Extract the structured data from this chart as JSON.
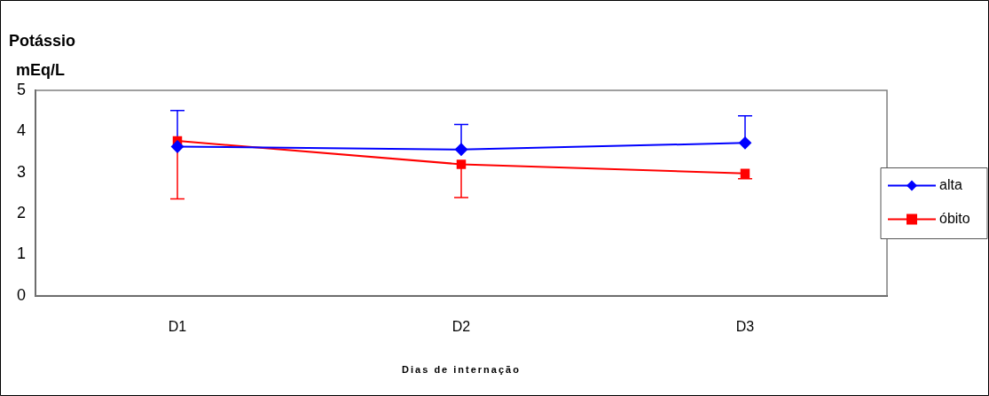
{
  "chart_data": {
    "type": "line",
    "title": "Potássio",
    "ylabel": "mEq/L",
    "xlabel": "Dias de internação",
    "categories": [
      "D1",
      "D2",
      "D3"
    ],
    "series": [
      {
        "name": "alta",
        "color": "#0000ff",
        "marker": "diamond",
        "values": [
          3.63,
          3.56,
          3.72
        ],
        "errors": [
          [
            3.63,
            4.51
          ],
          [
            3.56,
            4.17
          ],
          [
            3.72,
            4.38
          ]
        ]
      },
      {
        "name": "óbito",
        "color": "#ff0000",
        "marker": "square",
        "values": [
          3.77,
          3.2,
          2.98
        ],
        "errors": [
          [
            2.36,
            3.77
          ],
          [
            2.39,
            3.2
          ],
          [
            2.85,
            2.98
          ]
        ]
      }
    ],
    "ylim": [
      0,
      5
    ],
    "yticks": [
      0,
      1,
      2,
      3,
      4,
      5
    ],
    "grid": false,
    "legend": "right"
  }
}
